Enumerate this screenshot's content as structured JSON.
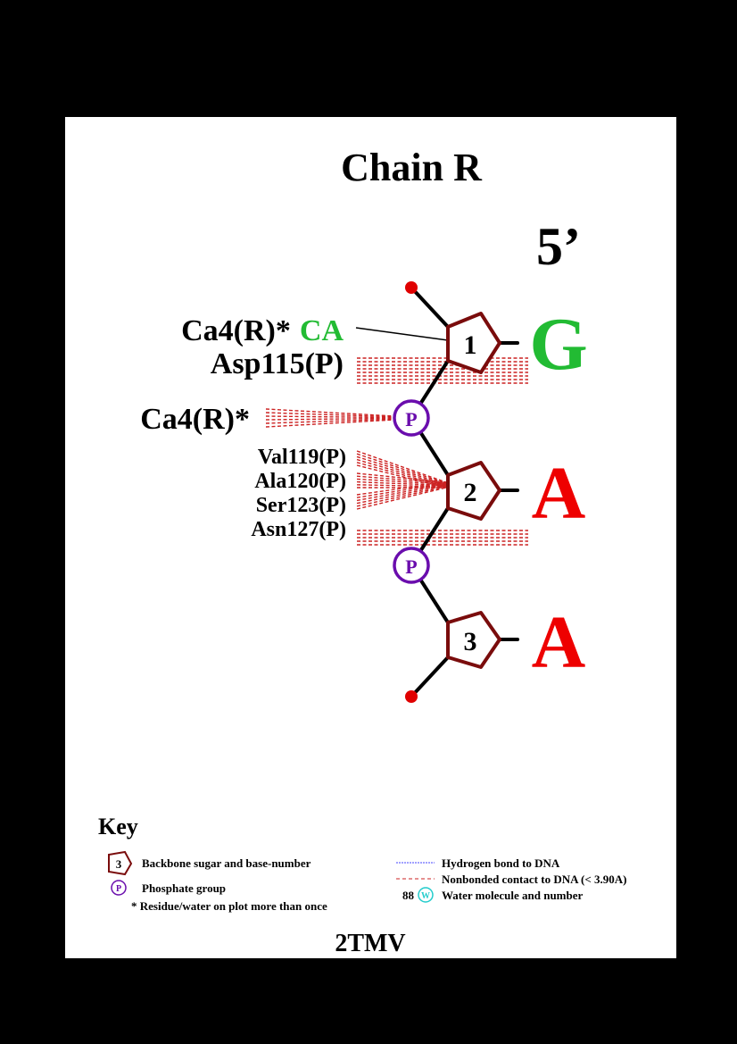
{
  "title": "Chain R",
  "end_label": "5’",
  "footer_id": "2TMV",
  "colors": {
    "sugar": "#7a0c0c",
    "phosphate": "#6a0dad",
    "terminal_dot": "#e00000",
    "base_G": "#22bb33",
    "base_A": "#ee0000",
    "nonbonded": "#cc2222",
    "hbond": "#4444ff",
    "water": "#22cccc",
    "ca_highlight": "#22bb33"
  },
  "nucleotides": [
    {
      "number": "1",
      "base": "G"
    },
    {
      "number": "2",
      "base": "A"
    },
    {
      "number": "3",
      "base": "A"
    }
  ],
  "phosphates": [
    {
      "label": "P"
    },
    {
      "label": "P"
    }
  ],
  "contacts": {
    "nuc1_ca": {
      "name": "Ca4(R)*",
      "suffix": "CA"
    },
    "nuc1_res": {
      "name": "Asp115(P)"
    },
    "phos1": {
      "name": "Ca4(R)*"
    },
    "nuc2": [
      {
        "name": "Val119(P)"
      },
      {
        "name": "Ala120(P)"
      },
      {
        "name": "Ser123(P)"
      },
      {
        "name": "Asn127(P)"
      }
    ]
  },
  "key": {
    "heading": "Key",
    "sugar_label": "Backbone sugar and base-number",
    "sugar_sample": "3",
    "phosphate_label": "Phosphate group",
    "phosphate_sample": "P",
    "star_note": "* Residue/water on plot more than once",
    "hbond_label": "Hydrogen bond to DNA",
    "nonbonded_label": "Nonbonded contact to DNA (< 3.90A)",
    "water_number": "88",
    "water_sample": "W",
    "water_label": "Water molecule and number"
  }
}
